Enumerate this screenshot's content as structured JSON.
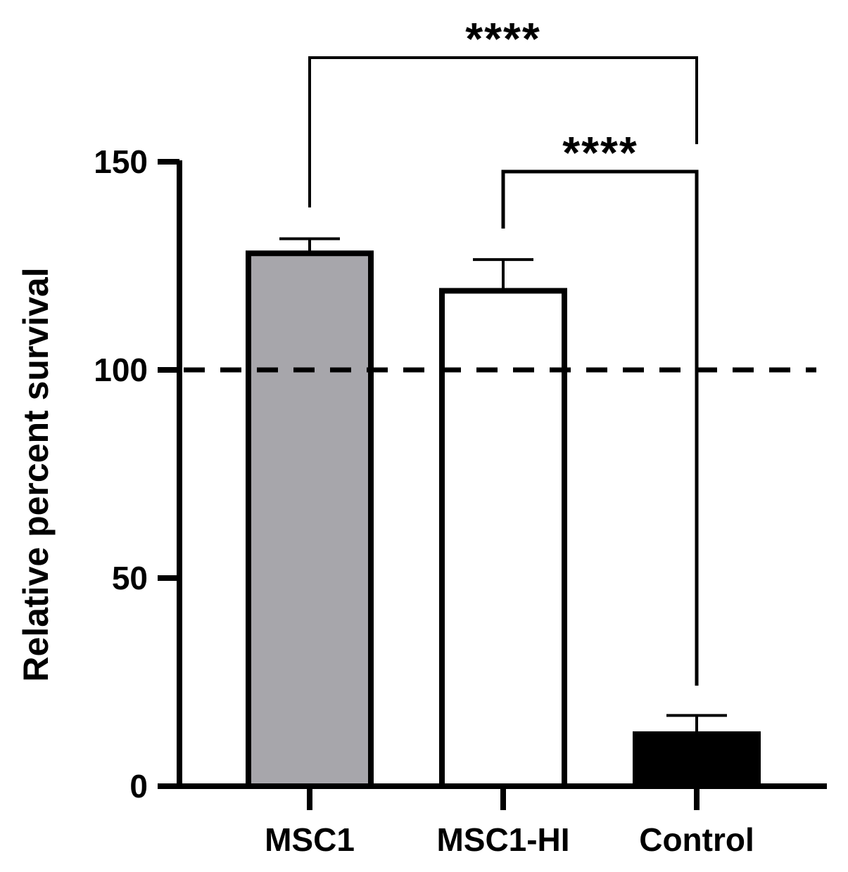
{
  "chart_data": {
    "type": "bar",
    "categories": [
      "MSC1",
      "MSC1-HI",
      "Control"
    ],
    "values": [
      128,
      119,
      12.5
    ],
    "errors": [
      3.5,
      7.5,
      4.5
    ],
    "bar_fills": [
      "#a7a6ab",
      "#ffffff",
      "#000000"
    ],
    "xlabel": "",
    "ylabel": "Relative percent survival",
    "ylim": [
      0,
      150
    ],
    "yticks": [
      0,
      50,
      100,
      150
    ],
    "reference_line": {
      "value": 100,
      "style": "dashed"
    },
    "significance": [
      {
        "from": "MSC1",
        "to": "Control",
        "label": "****"
      },
      {
        "from": "MSC1-HI",
        "to": "Control",
        "label": "****"
      }
    ],
    "grid": false,
    "legend": "none"
  }
}
